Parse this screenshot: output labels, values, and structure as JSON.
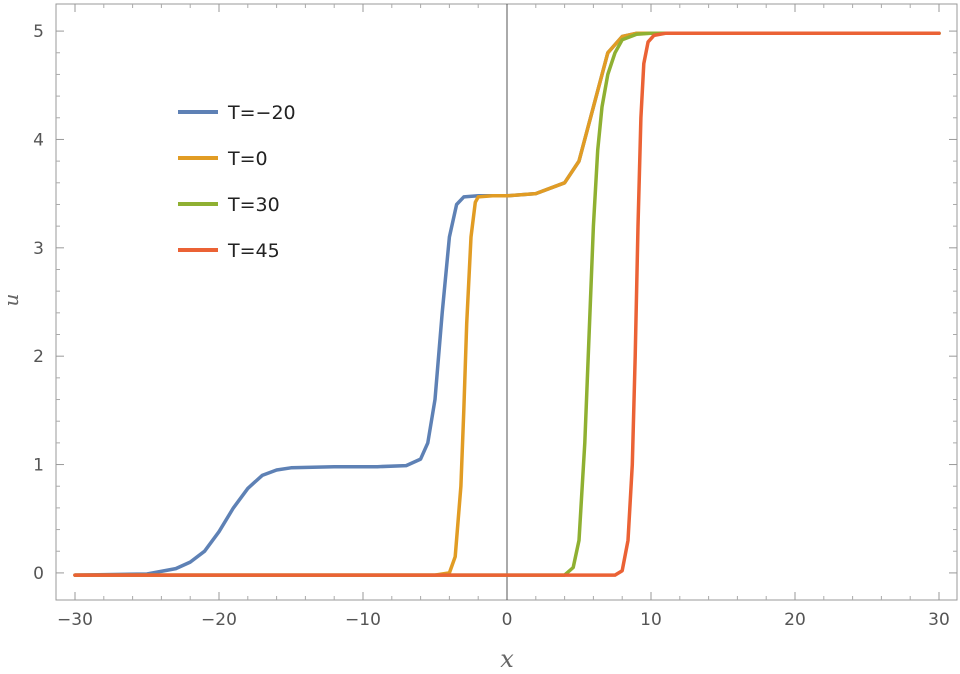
{
  "chart_data": {
    "type": "line",
    "title": "",
    "xlabel": "x",
    "ylabel": "u",
    "xlim": [
      -30,
      30
    ],
    "ylim": [
      -0.25,
      5.25
    ],
    "xticks": [
      -30,
      -20,
      -10,
      0,
      10,
      20,
      30
    ],
    "yticks": [
      0,
      1,
      2,
      3,
      4,
      5
    ],
    "xtick_labels": [
      "−30",
      "−20",
      "−10",
      "0",
      "10",
      "20",
      "30"
    ],
    "ytick_labels": [
      "0",
      "1",
      "2",
      "3",
      "4",
      "5"
    ],
    "grid": false,
    "frame": true,
    "legend": {
      "position": "upper-left"
    },
    "series": [
      {
        "name": "T=−20",
        "color": "#5e81b5",
        "x": [
          -30,
          -25,
          -23,
          -22,
          -21,
          -20,
          -19,
          -18,
          -17,
          -16,
          -15,
          -12,
          -9,
          -7,
          -6,
          -5.5,
          -5,
          -4.5,
          -4,
          -3.5,
          -3,
          -2,
          0,
          2,
          4,
          5,
          6,
          7,
          8,
          9,
          10,
          12,
          20,
          30
        ],
        "y": [
          -0.02,
          -0.01,
          0.04,
          0.1,
          0.2,
          0.38,
          0.6,
          0.78,
          0.9,
          0.95,
          0.97,
          0.98,
          0.98,
          0.99,
          1.05,
          1.2,
          1.6,
          2.4,
          3.1,
          3.4,
          3.47,
          3.48,
          3.48,
          3.5,
          3.6,
          3.8,
          4.3,
          4.8,
          4.95,
          4.98,
          4.98,
          4.98,
          4.98,
          4.98
        ]
      },
      {
        "name": "T=0",
        "color": "#e19c24",
        "x": [
          -30,
          -5,
          -4,
          -3.6,
          -3.2,
          -3,
          -2.8,
          -2.5,
          -2.2,
          -2,
          -1,
          0,
          2,
          4,
          5,
          6,
          7,
          8,
          9,
          10,
          12,
          20,
          30
        ],
        "y": [
          -0.02,
          -0.02,
          0.0,
          0.15,
          0.8,
          1.5,
          2.3,
          3.1,
          3.42,
          3.47,
          3.48,
          3.48,
          3.5,
          3.6,
          3.8,
          4.3,
          4.8,
          4.95,
          4.98,
          4.98,
          4.98,
          4.98,
          4.98
        ]
      },
      {
        "name": "T=30",
        "color": "#8fb032",
        "x": [
          -30,
          4,
          4.6,
          5.0,
          5.4,
          5.7,
          6.0,
          6.3,
          6.6,
          7,
          7.5,
          8,
          9,
          10,
          12,
          20,
          30
        ],
        "y": [
          -0.02,
          -0.02,
          0.05,
          0.3,
          1.2,
          2.2,
          3.2,
          3.9,
          4.3,
          4.6,
          4.8,
          4.92,
          4.97,
          4.98,
          4.98,
          4.98,
          4.98
        ]
      },
      {
        "name": "T=45",
        "color": "#eb6235",
        "x": [
          -30,
          7.5,
          8.0,
          8.4,
          8.7,
          8.9,
          9.1,
          9.3,
          9.5,
          9.8,
          10.2,
          11,
          20,
          30
        ],
        "y": [
          -0.02,
          -0.02,
          0.02,
          0.3,
          1.0,
          2.0,
          3.2,
          4.2,
          4.7,
          4.9,
          4.96,
          4.98,
          4.98,
          4.98
        ]
      }
    ]
  }
}
